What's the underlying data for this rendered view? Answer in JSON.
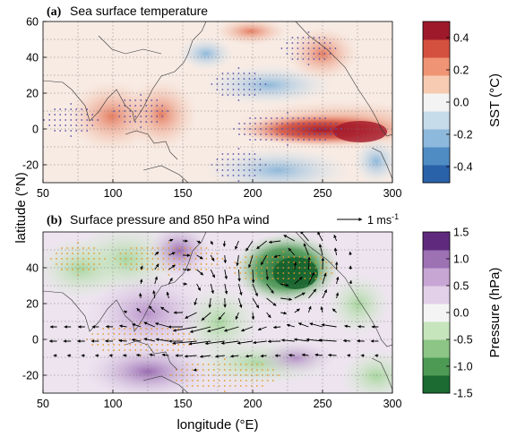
{
  "chart_data": [
    {
      "type": "heatmap",
      "panel_label": "(a)",
      "title": "Sea surface temperature",
      "xlim": [
        50,
        300
      ],
      "ylim": [
        -30,
        60
      ],
      "x_ticks": [
        "50",
        "100",
        "150",
        "200",
        "250",
        "300"
      ],
      "y_ticks": [
        "60",
        "40",
        "20",
        "0",
        "-20"
      ],
      "colorbar": {
        "title": "SST (°C)",
        "range": [
          -0.5,
          0.5
        ],
        "ticks": [
          "0.4",
          "0.2",
          "0.0",
          "-0.2",
          "-0.4"
        ],
        "colors": [
          "#2a62a9",
          "#4f8cc4",
          "#8db9dc",
          "#c6dceb",
          "#f3f3f3",
          "#f7cbb2",
          "#ef9475",
          "#d4513f",
          "#9e1a2b"
        ]
      },
      "features": [
        {
          "lon": 225,
          "lat": 0,
          "value": 0.5
        },
        {
          "lon": 190,
          "lat": 25,
          "value": -0.2
        },
        {
          "lon": 190,
          "lat": -20,
          "value": -0.2
        },
        {
          "lon": 120,
          "lat": 10,
          "value": 0.25
        },
        {
          "lon": 70,
          "lat": 5,
          "value": 0.2
        },
        {
          "lon": 240,
          "lat": 45,
          "value": 0.2
        }
      ]
    },
    {
      "type": "heatmap",
      "panel_label": "(b)",
      "title": "Surface pressure and 850 hPa wind",
      "wind_reference_label": "1 ms",
      "wind_reference_exponent": "-1",
      "xlim": [
        50,
        300
      ],
      "ylim": [
        -30,
        60
      ],
      "x_ticks": [
        "50",
        "100",
        "150",
        "200",
        "250",
        "300"
      ],
      "y_ticks": [
        "40",
        "20",
        "0",
        "-20"
      ],
      "xlabel": "longitude (°E)",
      "ylabel": "latitude (°N)",
      "colorbar": {
        "title": "Pressure (hPa)",
        "range": [
          -1.5,
          1.5
        ],
        "ticks": [
          "1.5",
          "1.0",
          "0.5",
          "0.0",
          "-0.5",
          "-1.0",
          "-1.5"
        ],
        "colors": [
          "#1b6b33",
          "#4d9a55",
          "#8cc586",
          "#c6e5bd",
          "#f4f4f4",
          "#e2d0e8",
          "#c7a6d4",
          "#9d72b3",
          "#5f2a7e"
        ]
      },
      "features": [
        {
          "lon": 222,
          "lat": 40,
          "value": -1.4
        },
        {
          "lon": 140,
          "lat": 45,
          "value": 0.6
        },
        {
          "lon": 120,
          "lat": 0,
          "value": 0.5
        },
        {
          "lon": 180,
          "lat": -20,
          "value": 0.5
        },
        {
          "lon": 75,
          "lat": 45,
          "value": -0.3
        }
      ]
    }
  ]
}
